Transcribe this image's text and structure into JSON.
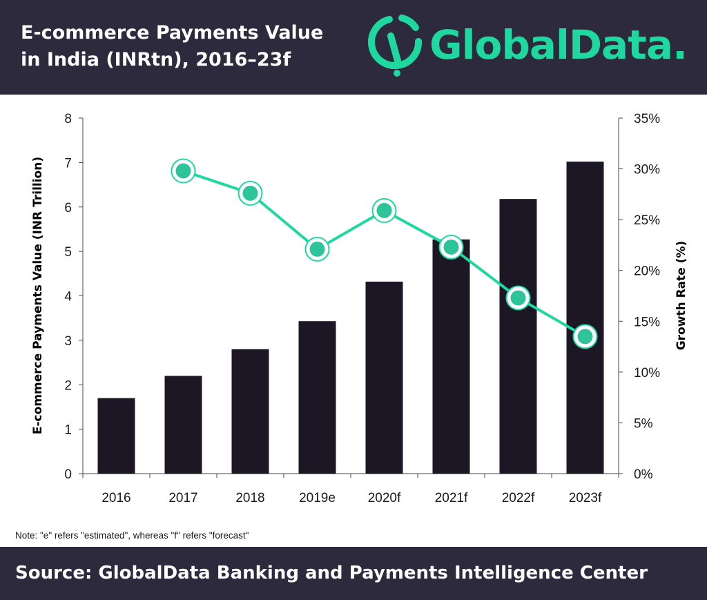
{
  "header": {
    "title_line1": "E-commerce Payments Value",
    "title_line2": "in India (INRtn), 2016–23f",
    "logo_text": "GlobalData."
  },
  "colors": {
    "header_bg": "#2d2a3d",
    "bar": "#1d1725",
    "line": "#1fd8a0",
    "marker_fill": "#2dc49a",
    "brand": "#1fd8a0"
  },
  "chart_data": {
    "type": "bar",
    "categories": [
      "2016",
      "2017",
      "2018",
      "2019e",
      "2020f",
      "2021f",
      "2022f",
      "2023f"
    ],
    "series": [
      {
        "type": "bar",
        "axis": "left",
        "values": [
          1.7,
          2.2,
          2.8,
          3.43,
          4.32,
          5.27,
          6.18,
          7.02
        ]
      },
      {
        "type": "line",
        "axis": "right",
        "values": [
          null,
          29.8,
          27.6,
          22.1,
          25.9,
          22.3,
          17.3,
          13.5
        ]
      }
    ],
    "ylabel": "E-commerce Payments Value (INR Trillion)",
    "y2label": "Growth Rate  (%)",
    "ylim": [
      0,
      8
    ],
    "y2lim": [
      0,
      35
    ],
    "yticks": [
      "0",
      "1",
      "2",
      "3",
      "4",
      "5",
      "6",
      "7",
      "8"
    ],
    "y2ticks": [
      "0%",
      "5%",
      "10%",
      "15%",
      "20%",
      "25%",
      "30%",
      "35%"
    ],
    "grid": false,
    "legend": "none"
  },
  "note": "Note: \"e\" refers \"estimated\", whereas \"f\" refers \"forecast\"",
  "footer": {
    "source": "Source: GlobalData Banking and Payments Intelligence Center"
  }
}
